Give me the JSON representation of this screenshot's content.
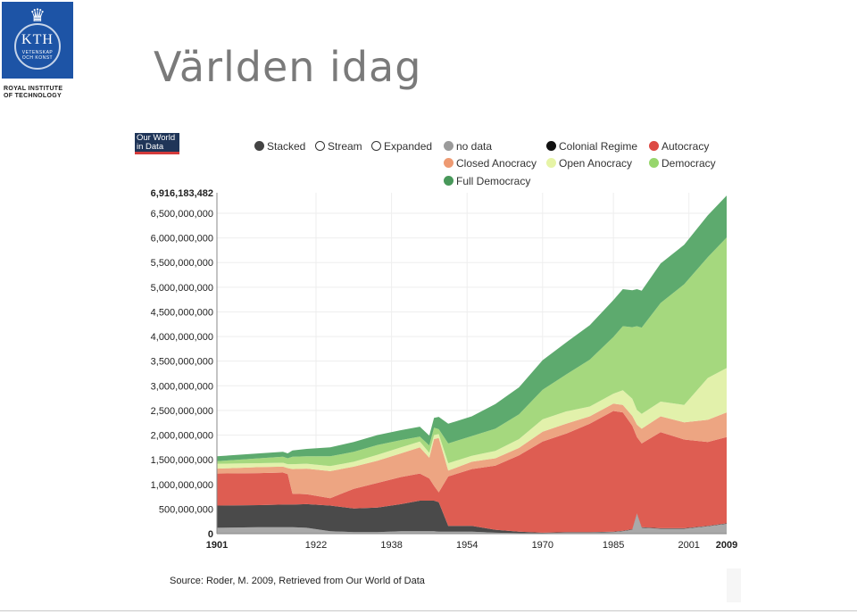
{
  "logo": {
    "wordmark": "KTH",
    "sub_line1": "VETENSKAP",
    "sub_line2": "OCH KONST",
    "caption_line1": "ROYAL INSTITUTE",
    "caption_line2": "OF TECHNOLOGY",
    "background": "#1d54a6"
  },
  "slide": {
    "title": "Världen idag"
  },
  "owid": {
    "line1": "Our World",
    "line2": "in Data"
  },
  "controls": [
    {
      "label": "Stacked",
      "selected": true
    },
    {
      "label": "Stream",
      "selected": false
    },
    {
      "label": "Expanded",
      "selected": false
    }
  ],
  "source": "Source: Roder, M. 2009, Retrieved from Our World of Data",
  "chart_data": {
    "type": "area",
    "stacked": true,
    "title": "",
    "xlabel": "",
    "ylabel": "",
    "xlim": [
      1901,
      2009
    ],
    "ylim": [
      0,
      6916183482
    ],
    "x_ticks": [
      {
        "value": 1901,
        "label": "1901",
        "bold": true
      },
      {
        "value": 1922,
        "label": "1922",
        "bold": false
      },
      {
        "value": 1938,
        "label": "1938",
        "bold": false
      },
      {
        "value": 1954,
        "label": "1954",
        "bold": false
      },
      {
        "value": 1970,
        "label": "1970",
        "bold": false
      },
      {
        "value": 1985,
        "label": "1985",
        "bold": false
      },
      {
        "value": 2001,
        "label": "2001",
        "bold": false
      },
      {
        "value": 2009,
        "label": "2009",
        "bold": true
      }
    ],
    "y_ticks": [
      {
        "value": 0,
        "label": "0",
        "bold": true
      },
      {
        "value": 500000000,
        "label": "500,000,000",
        "bold": false
      },
      {
        "value": 1000000000,
        "label": "1,000,000,000",
        "bold": false
      },
      {
        "value": 1500000000,
        "label": "1,500,000,000",
        "bold": false
      },
      {
        "value": 2000000000,
        "label": "2,000,000,000",
        "bold": false
      },
      {
        "value": 2500000000,
        "label": "2,500,000,000",
        "bold": false
      },
      {
        "value": 3000000000,
        "label": "3,000,000,000",
        "bold": false
      },
      {
        "value": 3500000000,
        "label": "3,500,000,000",
        "bold": false
      },
      {
        "value": 4000000000,
        "label": "4,000,000,000",
        "bold": false
      },
      {
        "value": 4500000000,
        "label": "4,500,000,000",
        "bold": false
      },
      {
        "value": 5000000000,
        "label": "5,000,000,000",
        "bold": false
      },
      {
        "value": 5500000000,
        "label": "5,500,000,000",
        "bold": false
      },
      {
        "value": 6000000000,
        "label": "6,000,000,000",
        "bold": false
      },
      {
        "value": 6500000000,
        "label": "6,500,000,000",
        "bold": false
      },
      {
        "value": 6916183482,
        "label": "6,916,183,482",
        "bold": true
      }
    ],
    "grid": true,
    "legend_position": "top",
    "x": [
      1901,
      1910,
      1915,
      1916,
      1917,
      1920,
      1925,
      1930,
      1935,
      1940,
      1944,
      1946,
      1947,
      1948,
      1950,
      1955,
      1960,
      1965,
      1970,
      1975,
      1980,
      1985,
      1987,
      1989,
      1990,
      1991,
      1995,
      2000,
      2005,
      2009
    ],
    "series": [
      {
        "name": "no data",
        "color": "#a9a9a9",
        "values": [
          0.12,
          0.13,
          0.13,
          0.13,
          0.13,
          0.12,
          0.05,
          0.03,
          0.03,
          0.05,
          0.05,
          0.05,
          0.05,
          0.04,
          0.04,
          0.04,
          0.02,
          0.01,
          0.01,
          0.02,
          0.02,
          0.03,
          0.05,
          0.08,
          0.4,
          0.12,
          0.1,
          0.1,
          0.15,
          0.2
        ]
      },
      {
        "name": "Colonial Regime",
        "color": "#4a4a4a",
        "values": [
          0.45,
          0.45,
          0.46,
          0.46,
          0.46,
          0.48,
          0.52,
          0.48,
          0.5,
          0.55,
          0.62,
          0.62,
          0.62,
          0.6,
          0.12,
          0.12,
          0.06,
          0.03,
          0.01,
          0.01,
          0.01,
          0.01,
          0.01,
          0.01,
          0.01,
          0.01,
          0.01,
          0.01,
          0.01,
          0.01
        ]
      },
      {
        "name": "Autocracy",
        "color": "#de5d52",
        "values": [
          0.65,
          0.65,
          0.65,
          0.62,
          0.22,
          0.2,
          0.15,
          0.4,
          0.5,
          0.55,
          0.55,
          0.45,
          0.3,
          0.2,
          1.0,
          1.15,
          1.3,
          1.55,
          1.85,
          2.0,
          2.2,
          2.45,
          2.4,
          2.1,
          1.55,
          1.7,
          1.95,
          1.8,
          1.7,
          1.75
        ]
      },
      {
        "name": "Closed Anocracy",
        "color": "#eda582",
        "values": [
          0.1,
          0.12,
          0.12,
          0.12,
          0.5,
          0.52,
          0.55,
          0.45,
          0.45,
          0.48,
          0.53,
          0.42,
          0.95,
          1.1,
          0.12,
          0.15,
          0.15,
          0.15,
          0.2,
          0.2,
          0.15,
          0.15,
          0.15,
          0.2,
          0.25,
          0.3,
          0.32,
          0.35,
          0.45,
          0.5
        ]
      },
      {
        "name": "Open Anocracy",
        "color": "#e2f1ab",
        "values": [
          0.1,
          0.08,
          0.08,
          0.08,
          0.1,
          0.1,
          0.1,
          0.1,
          0.12,
          0.12,
          0.12,
          0.1,
          0.08,
          0.08,
          0.15,
          0.12,
          0.15,
          0.18,
          0.25,
          0.25,
          0.2,
          0.2,
          0.3,
          0.35,
          0.3,
          0.3,
          0.3,
          0.35,
          0.85,
          0.9
        ]
      },
      {
        "name": "Democracy",
        "color": "#a5d87e",
        "values": [
          0.05,
          0.1,
          0.12,
          0.12,
          0.15,
          0.15,
          0.2,
          0.2,
          0.2,
          0.15,
          0.1,
          0.15,
          0.15,
          0.1,
          0.4,
          0.4,
          0.45,
          0.5,
          0.6,
          0.75,
          0.95,
          1.15,
          1.3,
          1.45,
          1.7,
          1.75,
          2.0,
          2.45,
          2.45,
          2.65
        ]
      },
      {
        "name": "Full Democracy",
        "color": "#5daa6e",
        "values": [
          0.1,
          0.1,
          0.1,
          0.1,
          0.13,
          0.15,
          0.18,
          0.2,
          0.2,
          0.2,
          0.2,
          0.2,
          0.2,
          0.25,
          0.4,
          0.4,
          0.5,
          0.55,
          0.6,
          0.65,
          0.7,
          0.75,
          0.75,
          0.75,
          0.75,
          0.75,
          0.8,
          0.8,
          0.85,
          0.85
        ]
      }
    ],
    "legend": [
      {
        "label": "no data",
        "color": "#9b9b9b"
      },
      {
        "label": "Colonial Regime",
        "color": "#111111"
      },
      {
        "label": "Autocracy",
        "color": "#dd4a44"
      },
      {
        "label": "Closed Anocracy",
        "color": "#ee9a72"
      },
      {
        "label": "Open Anocracy",
        "color": "#e6f4a6"
      },
      {
        "label": "Democracy",
        "color": "#97d66c"
      },
      {
        "label": "Full Democracy",
        "color": "#48985a"
      }
    ],
    "value_scale": "billions for series values"
  }
}
